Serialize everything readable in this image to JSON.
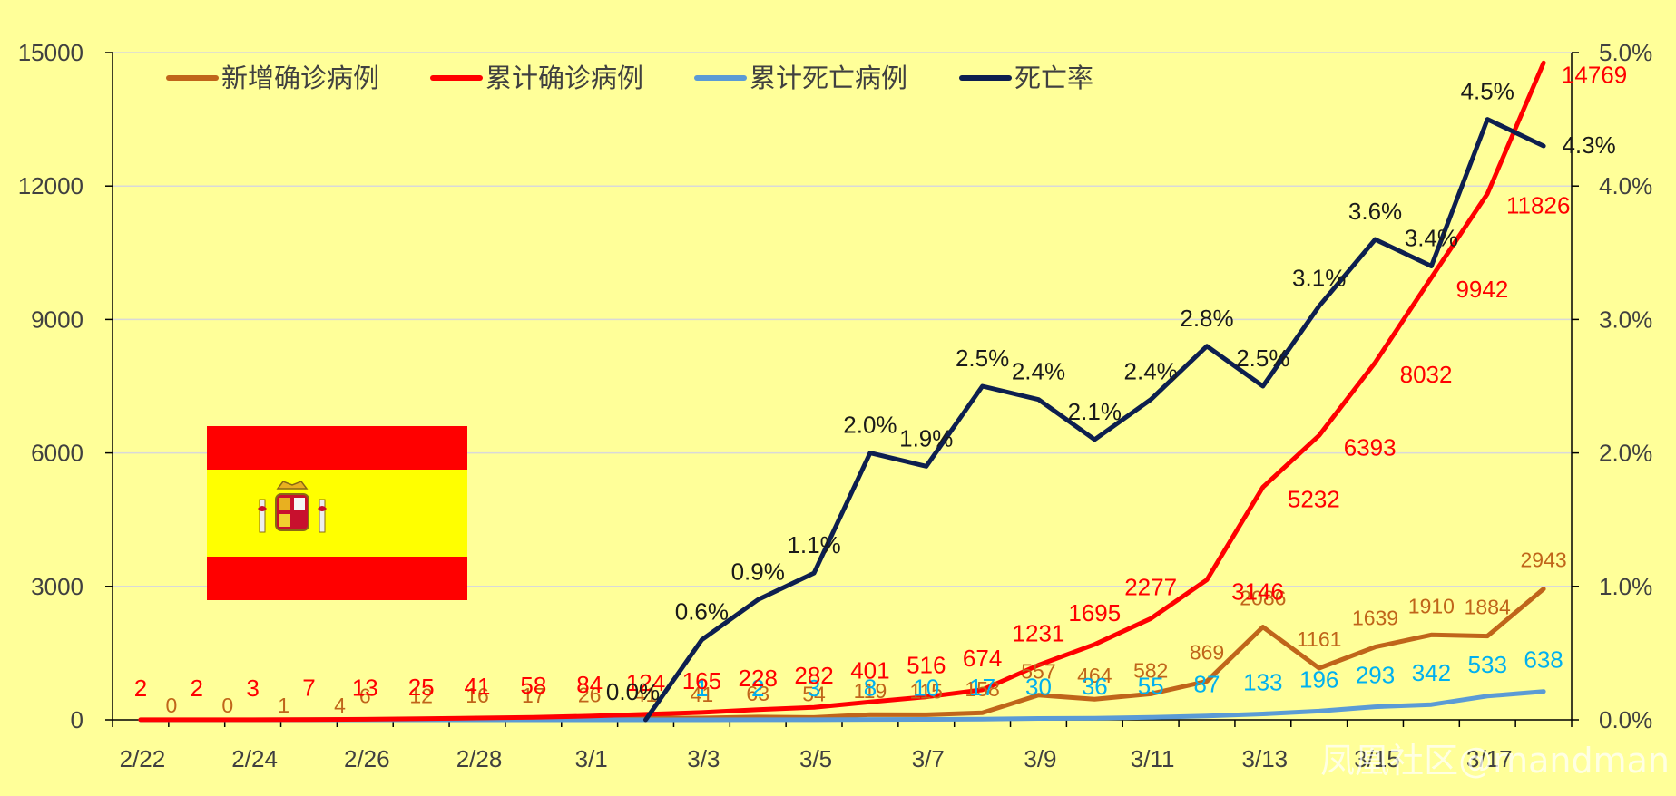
{
  "chart_data": {
    "type": "line",
    "categories": [
      "2/22",
      "2/23",
      "2/24",
      "2/25",
      "2/26",
      "2/27",
      "2/28",
      "2/29",
      "3/1",
      "3/2",
      "3/3",
      "3/4",
      "3/5",
      "3/6",
      "3/7",
      "3/8",
      "3/9",
      "3/10",
      "3/11",
      "3/12",
      "3/13",
      "3/14",
      "3/15",
      "3/16",
      "3/17",
      "3/18"
    ],
    "x_tick_labels": [
      "2/22",
      "2/24",
      "2/26",
      "2/28",
      "3/1",
      "3/3",
      "3/5",
      "3/7",
      "3/9",
      "3/11",
      "3/13",
      "3/15",
      "3/17"
    ],
    "y_left": {
      "min": 0,
      "max": 15000,
      "ticks": [
        "0",
        "3000",
        "6000",
        "9000",
        "12000",
        "15000"
      ]
    },
    "y_right": {
      "min": 0,
      "max": 5,
      "ticks": [
        "0.0%",
        "1.0%",
        "2.0%",
        "3.0%",
        "4.0%",
        "5.0%"
      ]
    },
    "grid": true,
    "legend_position": "top-left",
    "series": [
      {
        "name": "新增确诊病例",
        "axis": "left",
        "color": "#C0651A",
        "values": [
          0,
          0,
          1,
          4,
          6,
          12,
          16,
          17,
          26,
          41,
          41,
          63,
          54,
          119,
          115,
          158,
          557,
          464,
          582,
          869,
          2086,
          1161,
          1639,
          1910,
          1884,
          2943
        ],
        "labels": [
          "0",
          "0",
          "1",
          "4",
          "6",
          "12",
          "16",
          "17",
          "26",
          "41",
          "41",
          "63",
          "54",
          "119",
          "115",
          "158",
          "557",
          "464",
          "582",
          "869",
          "2086",
          "1161",
          "1639",
          "1910",
          "1884",
          "2943"
        ]
      },
      {
        "name": "累计确诊病例",
        "axis": "left",
        "color": "#FF0000",
        "values": [
          2,
          2,
          3,
          7,
          13,
          25,
          41,
          58,
          84,
          124,
          165,
          228,
          282,
          401,
          516,
          674,
          1231,
          1695,
          2277,
          3146,
          5232,
          6393,
          8032,
          9942,
          11826,
          14769
        ],
        "labels": [
          "2",
          "2",
          "3",
          "7",
          "13",
          "25",
          "41",
          "58",
          "84",
          "124",
          "165",
          "228",
          "282",
          "401",
          "516",
          "674",
          "1231",
          "1695",
          "2277",
          "3146",
          "5232",
          "6393",
          "8032",
          "9942",
          "11826",
          "14769"
        ]
      },
      {
        "name": "累计死亡病例",
        "axis": "left",
        "color": "#5B9BD5",
        "label_color": "#00B0F0",
        "values": [
          0,
          0,
          0,
          0,
          0,
          0,
          0,
          0,
          0,
          0,
          1,
          2,
          3,
          8,
          10,
          17,
          30,
          36,
          55,
          87,
          133,
          196,
          293,
          342,
          533,
          638
        ],
        "labels": [
          "",
          "",
          "",
          "",
          "",
          "",
          "",
          "",
          "",
          "",
          "1",
          "2",
          "3",
          "8",
          "10",
          "17",
          "30",
          "36",
          "55",
          "87",
          "133",
          "196",
          "293",
          "342",
          "533",
          "638"
        ]
      },
      {
        "name": "死亡率",
        "axis": "right",
        "color": "#0D1F4F",
        "start_index": 9,
        "values": [
          null,
          null,
          null,
          null,
          null,
          null,
          null,
          null,
          null,
          0.0,
          0.6,
          0.9,
          1.1,
          2.0,
          1.9,
          2.5,
          2.4,
          2.1,
          2.4,
          2.8,
          2.5,
          3.1,
          3.6,
          3.4,
          4.5,
          4.3
        ],
        "labels": [
          "",
          "",
          "",
          "",
          "",
          "",
          "",
          "",
          "",
          "0.0%",
          "0.6%",
          "0.9%",
          "1.1%",
          "2.0%",
          "1.9%",
          "2.5%",
          "2.4%",
          "2.1%",
          "2.4%",
          "2.8%",
          "2.5%",
          "3.1%",
          "3.6%",
          "3.4%",
          "4.5%",
          "4.3%"
        ]
      }
    ],
    "watermark": "凤凰社区@rnandman",
    "flag": {
      "colors": [
        "#FF0000",
        "#FFFF00"
      ]
    }
  }
}
